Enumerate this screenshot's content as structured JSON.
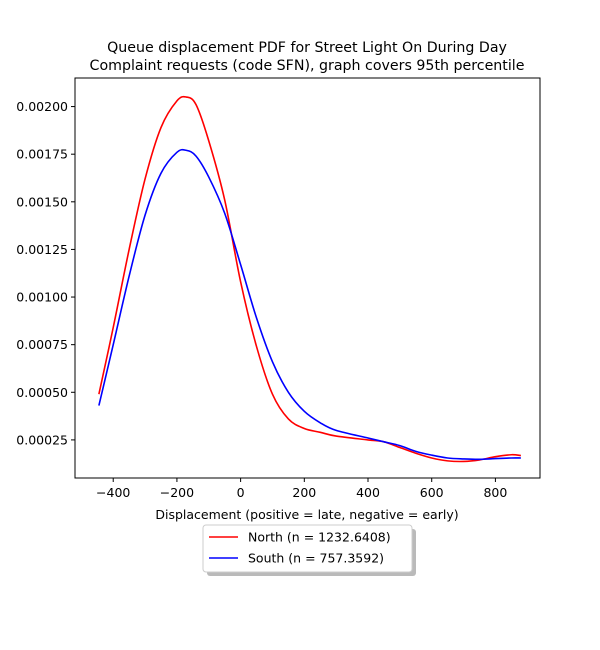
{
  "chart_data": {
    "type": "line",
    "title_line1": "Queue displacement PDF for Street Light On During Day",
    "title_line2": "Complaint  requests (code SFN), graph covers 95th percentile",
    "xlabel": "Displacement (positive = late, negative = early)",
    "ylabel": "",
    "xlim": [
      -520,
      940
    ],
    "ylim": [
      5e-05,
      0.00215
    ],
    "xticks": [
      -400,
      -200,
      0,
      200,
      400,
      600,
      800
    ],
    "xtick_labels": [
      "−400",
      "−200",
      "0",
      "200",
      "400",
      "600",
      "800"
    ],
    "yticks": [
      0.00025,
      0.0005,
      0.00075,
      0.001,
      0.00125,
      0.0015,
      0.00175,
      0.002
    ],
    "ytick_labels": [
      "0.00025",
      "0.00050",
      "0.00075",
      "0.00100",
      "0.00125",
      "0.00150",
      "0.00175",
      "0.00200"
    ],
    "grid": false,
    "legend_position": "below plot, centered",
    "series": [
      {
        "name": "North (n = 1232.6408)",
        "color": "#ff0000",
        "x": [
          -445,
          -400,
          -350,
          -300,
          -250,
          -200,
          -170,
          -140,
          -100,
          -50,
          0,
          50,
          100,
          150,
          200,
          250,
          300,
          400,
          450,
          500,
          550,
          600,
          650,
          700,
          750,
          800,
          850,
          880
        ],
        "y": [
          0.00049,
          0.00084,
          0.00125,
          0.00162,
          0.00189,
          0.00203,
          0.00205,
          0.00201,
          0.00182,
          0.00151,
          0.00108,
          0.00074,
          0.00049,
          0.00036,
          0.00031,
          0.00029,
          0.00027,
          0.00025,
          0.00024,
          0.00021,
          0.00018,
          0.000155,
          0.00014,
          0.000137,
          0.000145,
          0.000162,
          0.000172,
          0.000168
        ]
      },
      {
        "name": "South (n = 757.3592)",
        "color": "#0000ff",
        "x": [
          -445,
          -400,
          -350,
          -300,
          -250,
          -200,
          -170,
          -140,
          -100,
          -50,
          0,
          50,
          100,
          150,
          200,
          250,
          300,
          400,
          450,
          500,
          550,
          600,
          650,
          700,
          750,
          800,
          850,
          880
        ],
        "y": [
          0.00043,
          0.00075,
          0.00111,
          0.00143,
          0.00165,
          0.00176,
          0.00177,
          0.00174,
          0.00163,
          0.00144,
          0.00117,
          0.00089,
          0.00066,
          0.0005,
          0.0004,
          0.00034,
          0.0003,
          0.00026,
          0.00024,
          0.00022,
          0.00019,
          0.00017,
          0.000155,
          0.00015,
          0.000148,
          0.000152,
          0.000155,
          0.000155
        ]
      }
    ]
  }
}
